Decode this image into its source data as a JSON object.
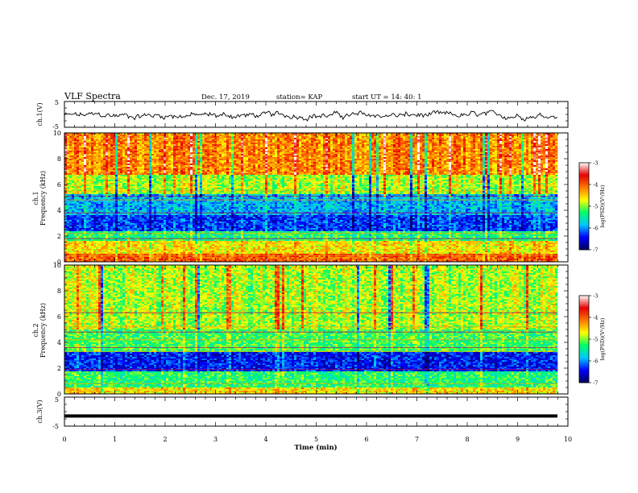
{
  "header": {
    "title": "VLF Spectra",
    "date": "Dec. 17, 2019",
    "station": "station= KAP",
    "start": "start  UT =   14: 40: 1"
  },
  "chart_data": [
    {
      "type": "line",
      "panel": "ch1-waveform",
      "ylabel": "ch.1(V)",
      "ylim": [
        -5,
        5
      ],
      "yticks": [
        "5",
        "-5"
      ],
      "xlim": [
        0,
        10
      ],
      "series_color": "#000000",
      "y_range_observed": [
        -2.5,
        1.5
      ],
      "note_style": "noisy waveform"
    },
    {
      "type": "heatmap",
      "panel": "ch1-spectrogram",
      "ylabel": "ch.1\nFrequency (kHz)",
      "ylim": [
        0,
        10
      ],
      "yticks": [
        "0",
        "2",
        "4",
        "6",
        "8",
        "10"
      ],
      "xlim": [
        0,
        9.85
      ],
      "colorbar": {
        "label": "log(PSD)(V²/Hz)",
        "range": [
          -7,
          -3
        ],
        "ticks": [
          "-3",
          "-4",
          "-5",
          "-6",
          "-7"
        ]
      },
      "bands": [
        {
          "fmin": 0.0,
          "fmax": 0.6,
          "level": -4.0
        },
        {
          "fmin": 0.6,
          "fmax": 1.6,
          "level": -4.6
        },
        {
          "fmin": 1.6,
          "fmax": 2.4,
          "level": -5.3
        },
        {
          "fmin": 2.4,
          "fmax": 3.6,
          "level": -6.3
        },
        {
          "fmin": 3.6,
          "fmax": 5.2,
          "level": -5.9
        },
        {
          "fmin": 5.2,
          "fmax": 6.8,
          "level": -4.9
        },
        {
          "fmin": 6.8,
          "fmax": 10.0,
          "level": -4.2
        }
      ],
      "lines_khz": [
        0.5,
        1.8,
        2.2,
        3.8,
        4.8,
        5.1,
        5.5
      ]
    },
    {
      "type": "heatmap",
      "panel": "ch2-spectrogram",
      "ylabel": "ch.2\nFrequency (kHz)",
      "ylim": [
        0,
        10
      ],
      "yticks": [
        "0",
        "2",
        "4",
        "6",
        "8",
        "10"
      ],
      "xlim": [
        0,
        9.85
      ],
      "colorbar": {
        "label": "log(PSD)(V²/Hz)",
        "range": [
          -7,
          -3
        ],
        "ticks": [
          "-3",
          "-4",
          "-5",
          "-6",
          "-7"
        ]
      },
      "bands": [
        {
          "fmin": 0.0,
          "fmax": 0.5,
          "level": -4.6
        },
        {
          "fmin": 0.5,
          "fmax": 1.7,
          "level": -5.3
        },
        {
          "fmin": 1.7,
          "fmax": 3.3,
          "level": -6.4
        },
        {
          "fmin": 3.3,
          "fmax": 5.0,
          "level": -5.2
        },
        {
          "fmin": 5.0,
          "fmax": 7.0,
          "level": -4.9
        },
        {
          "fmin": 7.0,
          "fmax": 10.0,
          "level": -4.9
        }
      ],
      "lines_khz": [
        0.8,
        1.9,
        3.3,
        3.6,
        4.2,
        4.8,
        5.2,
        6.3
      ]
    },
    {
      "type": "line",
      "panel": "ch3-waveform",
      "ylabel": "ch.3(V)",
      "ylim": [
        -5,
        5
      ],
      "yticks": [
        "5",
        "-5"
      ],
      "xlim": [
        0,
        10
      ],
      "constant_value": -1.5,
      "xlabel": "Time (min)",
      "xticks": [
        "0",
        "1",
        "2",
        "3",
        "4",
        "5",
        "6",
        "7",
        "8",
        "9",
        "10"
      ]
    }
  ],
  "colors": {
    "colormap": [
      "#00005a",
      "#0000ff",
      "#00c8ff",
      "#00ff64",
      "#ffff00",
      "#ff7800",
      "#e60000",
      "#ffffff"
    ]
  }
}
